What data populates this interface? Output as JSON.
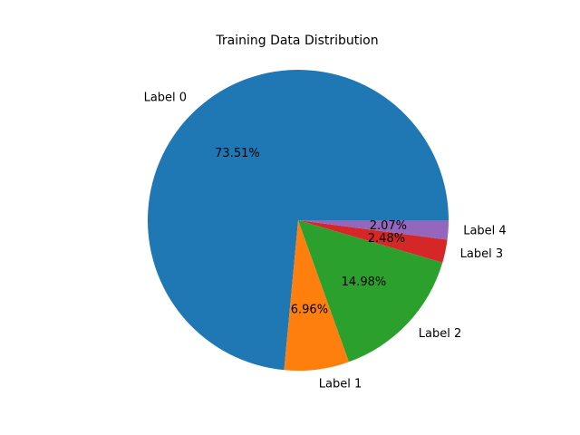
{
  "chart_data": {
    "type": "pie",
    "title": "Training Data Distribution",
    "categories": [
      "Label 0",
      "Label 1",
      "Label 2",
      "Label 3",
      "Label 4"
    ],
    "values": [
      73.51,
      6.96,
      14.98,
      2.48,
      2.07
    ],
    "value_labels": [
      "73.51%",
      "6.96%",
      "14.98%",
      "2.48%",
      "2.07%"
    ],
    "colors": [
      "#1f77b4",
      "#ff7f0e",
      "#2ca02c",
      "#d62728",
      "#9467bd"
    ],
    "start_angle_deg": 0,
    "direction": "counterclockwise",
    "legend": "none"
  }
}
